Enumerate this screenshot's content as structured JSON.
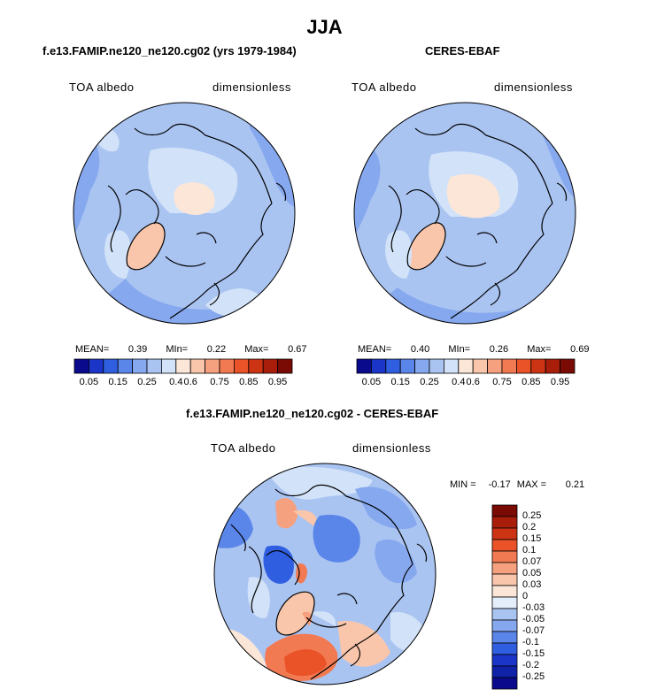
{
  "header": {
    "title": "JJA"
  },
  "panel_model": {
    "title": "f.e13.FAMIP.ne120_ne120.cg02 (yrs 1979-1984)",
    "field_name": "TOA albedo",
    "units": "dimensionless",
    "stats": {
      "mean_label": "MEAN=",
      "mean": "0.39",
      "min_label": "MIn=",
      "min": "0.22",
      "max_label": "Max=",
      "max": "0.67"
    }
  },
  "panel_obs": {
    "title": "CERES-EBAF",
    "field_name": "TOA albedo",
    "units": "dimensionless",
    "stats": {
      "mean_label": "MEAN=",
      "mean": "0.40",
      "min_label": "MIn=",
      "min": "0.26",
      "max_label": "Max=",
      "max": "0.69"
    }
  },
  "panel_diff": {
    "title": "f.e13.FAMIP.ne120_ne120.cg02 - CERES-EBAF",
    "field_name": "TOA albedo",
    "units": "dimensionless",
    "stats": {
      "min_label": "MIN =",
      "min": "-0.17",
      "max_label": "MAX =",
      "max": "0.21"
    }
  },
  "colorbar_abs": {
    "colors": [
      "#0a0a8c",
      "#1a35c8",
      "#2f5fe0",
      "#5a86ea",
      "#86a8ee",
      "#aac4f2",
      "#d2e2f8",
      "#fbe6d8",
      "#f9c6ab",
      "#f5a07e",
      "#f27a52",
      "#ea5228",
      "#cc3414",
      "#a81e0a",
      "#7a0a04"
    ],
    "labels": [
      "0.05",
      "0.15",
      "0.25",
      "0.4",
      "0.6",
      "0.75",
      "0.85",
      "0.95"
    ]
  },
  "colorbar_diff": {
    "colors": [
      "#7a0a04",
      "#a81e0a",
      "#cc3414",
      "#ea5228",
      "#f27a52",
      "#f5a07e",
      "#f9c6ab",
      "#fbe6d8",
      "#e4eefa",
      "#aac4f2",
      "#86a8ee",
      "#5a86ea",
      "#2f5fe0",
      "#1a35c8",
      "#0f22a8",
      "#0a0a8c"
    ],
    "labels": [
      "0.25",
      "0.2",
      "0.15",
      "0.1",
      "0.07",
      "0.05",
      "0.03",
      "0",
      "-0.03",
      "-0.05",
      "-0.07",
      "-0.1",
      "-0.15",
      "-0.2",
      "-0.25"
    ]
  }
}
